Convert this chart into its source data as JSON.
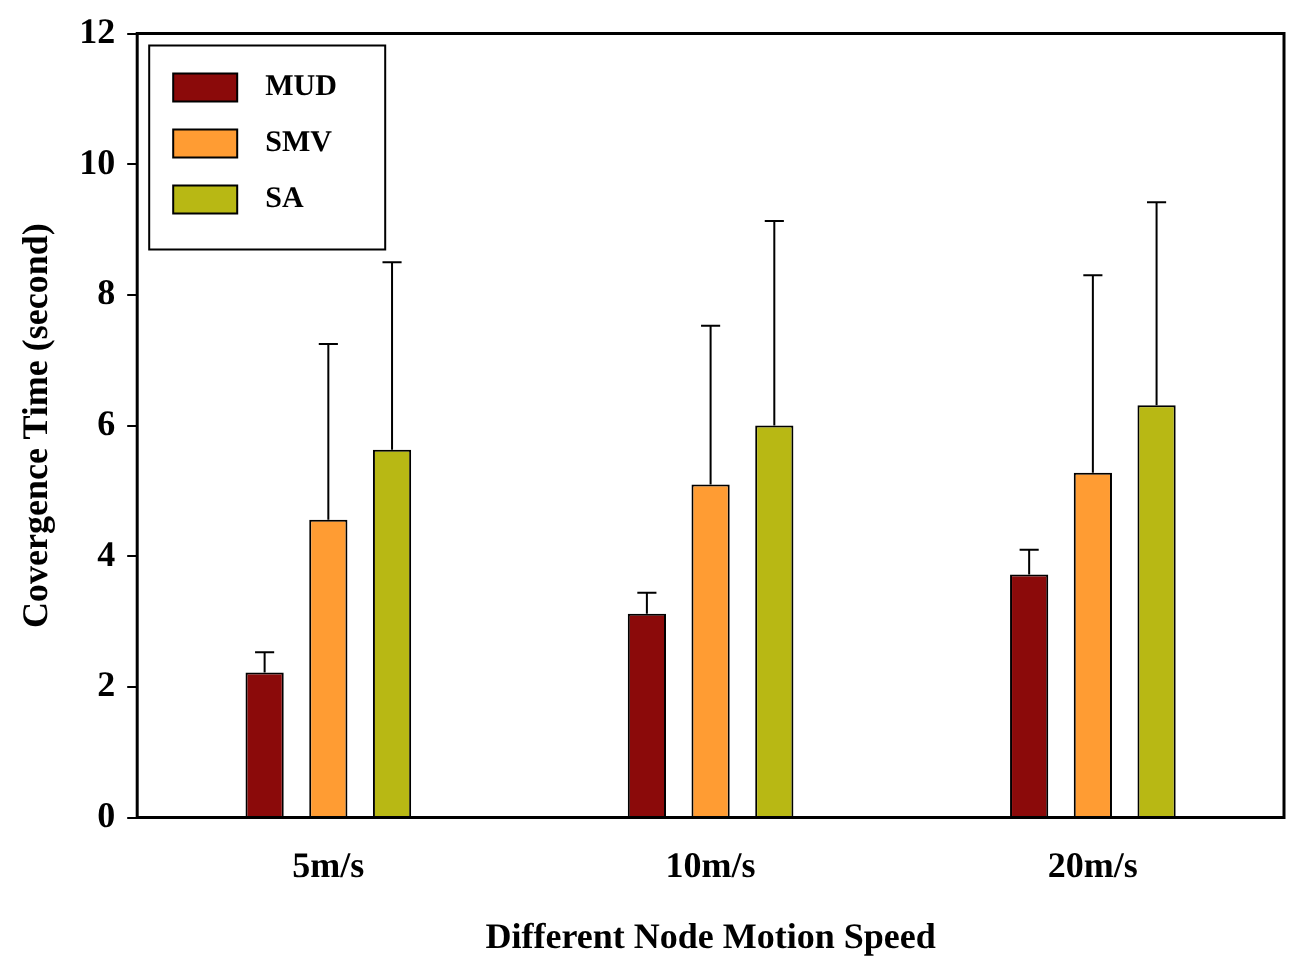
{
  "chart_data": {
    "type": "bar",
    "xlabel": "Different Node Motion Speed",
    "ylabel": "Covergence Time (second)",
    "categories": [
      "5m/s",
      "10m/s",
      "20m/s"
    ],
    "series": [
      {
        "name": "MUD",
        "color": "#8b0a0a",
        "values": [
          2.22,
          3.12,
          3.72
        ],
        "errors": [
          [
            2.22,
            2.53
          ],
          [
            3.12,
            3.44
          ],
          [
            3.72,
            4.1
          ]
        ]
      },
      {
        "name": "SMV",
        "color": "#ff9c33",
        "values": [
          4.56,
          5.1,
          5.28
        ],
        "errors": [
          [
            4.56,
            7.25
          ],
          [
            5.1,
            7.53
          ],
          [
            5.28,
            8.3
          ]
        ]
      },
      {
        "name": "SA",
        "color": "#b8b814",
        "values": [
          5.63,
          6.0,
          6.31
        ],
        "errors": [
          [
            5.63,
            8.5
          ],
          [
            6.0,
            9.13
          ],
          [
            6.31,
            9.42
          ]
        ]
      }
    ],
    "ylim": [
      0,
      12
    ],
    "yticks": [
      0,
      2,
      4,
      6,
      8,
      10,
      12
    ],
    "grid": false,
    "legend": "top left"
  }
}
